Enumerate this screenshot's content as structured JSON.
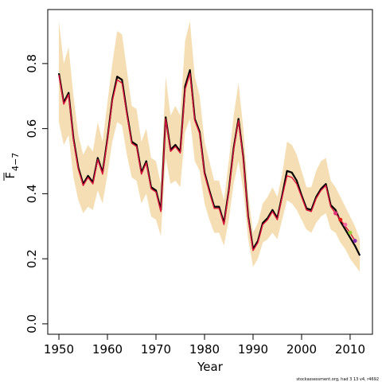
{
  "chart_data": {
    "type": "line",
    "xlabel": "Year",
    "ylabel": "F",
    "ylabel_sub": "4−7",
    "footnote": "stockassessment.org, had 3 13 v4, r4692",
    "x": [
      1950,
      1951,
      1952,
      1953,
      1954,
      1955,
      1956,
      1957,
      1958,
      1959,
      1960,
      1961,
      1962,
      1963,
      1964,
      1965,
      1966,
      1967,
      1968,
      1969,
      1970,
      1971,
      1972,
      1973,
      1974,
      1975,
      1976,
      1977,
      1978,
      1979,
      1980,
      1981,
      1982,
      1983,
      1984,
      1985,
      1986,
      1987,
      1988,
      1989,
      1990,
      1991,
      1992,
      1993,
      1994,
      1995,
      1996,
      1997,
      1998,
      1999,
      2000,
      2001,
      2002,
      2003,
      2004,
      2005,
      2006,
      2007,
      2008,
      2009,
      2010,
      2011,
      2012
    ],
    "values": [
      0.77,
      0.68,
      0.71,
      0.57,
      0.48,
      0.43,
      0.455,
      0.435,
      0.51,
      0.465,
      0.57,
      0.69,
      0.76,
      0.75,
      0.65,
      0.56,
      0.55,
      0.465,
      0.5,
      0.42,
      0.41,
      0.35,
      0.635,
      0.535,
      0.55,
      0.53,
      0.73,
      0.78,
      0.63,
      0.59,
      0.465,
      0.41,
      0.36,
      0.36,
      0.31,
      0.41,
      0.54,
      0.63,
      0.51,
      0.33,
      0.23,
      0.255,
      0.31,
      0.325,
      0.35,
      0.325,
      0.395,
      0.47,
      0.465,
      0.44,
      0.395,
      0.355,
      0.35,
      0.39,
      0.415,
      0.43,
      0.365,
      0.35,
      0.315,
      0.29,
      0.265,
      0.24,
      0.21
    ],
    "color": "#000000",
    "upper": [
      0.93,
      0.8,
      0.85,
      0.7,
      0.58,
      0.52,
      0.55,
      0.53,
      0.62,
      0.56,
      0.68,
      0.8,
      0.9,
      0.89,
      0.78,
      0.67,
      0.66,
      0.56,
      0.6,
      0.51,
      0.5,
      0.43,
      0.76,
      0.64,
      0.67,
      0.64,
      0.87,
      0.93,
      0.76,
      0.7,
      0.56,
      0.5,
      0.44,
      0.44,
      0.38,
      0.5,
      0.64,
      0.74,
      0.6,
      0.4,
      0.28,
      0.31,
      0.37,
      0.39,
      0.42,
      0.39,
      0.46,
      0.56,
      0.55,
      0.52,
      0.47,
      0.42,
      0.42,
      0.47,
      0.5,
      0.51,
      0.44,
      0.42,
      0.39,
      0.36,
      0.33,
      0.3,
      0.26
    ],
    "lower": [
      0.62,
      0.55,
      0.58,
      0.45,
      0.38,
      0.34,
      0.36,
      0.35,
      0.41,
      0.37,
      0.46,
      0.56,
      0.62,
      0.61,
      0.52,
      0.45,
      0.44,
      0.37,
      0.4,
      0.33,
      0.32,
      0.27,
      0.51,
      0.43,
      0.44,
      0.42,
      0.59,
      0.63,
      0.5,
      0.47,
      0.37,
      0.32,
      0.28,
      0.28,
      0.24,
      0.32,
      0.43,
      0.5,
      0.41,
      0.26,
      0.175,
      0.2,
      0.25,
      0.26,
      0.28,
      0.26,
      0.32,
      0.38,
      0.37,
      0.35,
      0.32,
      0.29,
      0.28,
      0.31,
      0.33,
      0.34,
      0.29,
      0.28,
      0.25,
      0.23,
      0.2,
      0.18,
      0.16
    ],
    "band_color": "#f5deb3",
    "retro": {
      "color": "#dc143c",
      "values": [
        0.765,
        0.675,
        0.705,
        0.565,
        0.475,
        0.425,
        0.45,
        0.43,
        0.505,
        0.46,
        0.565,
        0.685,
        0.75,
        0.74,
        0.645,
        0.555,
        0.545,
        0.46,
        0.495,
        0.415,
        0.405,
        0.345,
        0.63,
        0.53,
        0.545,
        0.525,
        0.72,
        0.77,
        0.625,
        0.585,
        0.46,
        0.405,
        0.355,
        0.355,
        0.305,
        0.405,
        0.535,
        0.625,
        0.505,
        0.325,
        0.225,
        0.25,
        0.305,
        0.32,
        0.345,
        0.32,
        0.39,
        0.455,
        0.45,
        0.43,
        0.39,
        0.35,
        0.345,
        0.385,
        0.41,
        0.425,
        0.36,
        0.34,
        0.32,
        0.3,
        0.28,
        0.255,
        null
      ]
    },
    "points": {
      "x": [
        2007,
        2008,
        2009,
        2010,
        2011
      ],
      "values": [
        0.34,
        0.32,
        0.305,
        0.28,
        0.255
      ],
      "colors": [
        "#e0307a",
        "#e31a1c",
        "#f768a1",
        "#9acd32",
        "#8b30b0"
      ]
    },
    "xlim": [
      1947.7,
      2014.6
    ],
    "ylim": [
      -0.032,
      0.966
    ],
    "xticks": [
      1950,
      1960,
      1970,
      1980,
      1990,
      2000,
      2010
    ],
    "yticks": [
      {
        "value": 0,
        "label": "0.0"
      },
      0.2,
      0.4,
      0.6,
      0.8
    ]
  }
}
